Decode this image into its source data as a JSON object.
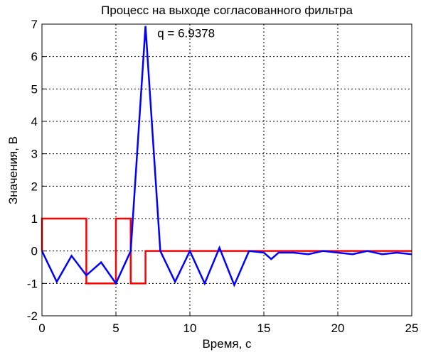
{
  "chart_data": {
    "type": "line",
    "title": "Процесс на выходе согласованного фильтра",
    "xlabel": "Время, с",
    "ylabel": "Значения, В",
    "annotation": {
      "text": "q = 6.9378",
      "x": 7.8,
      "y": 6.6,
      "color": "#0000ff"
    },
    "xlim": [
      0,
      25
    ],
    "ylim": [
      -2,
      7
    ],
    "xticks": [
      0,
      5,
      10,
      15,
      20,
      25
    ],
    "yticks": [
      -2,
      -1,
      0,
      1,
      2,
      3,
      4,
      5,
      6,
      7
    ],
    "grid": true,
    "series": [
      {
        "color": "#ff0000",
        "x": [
          0,
          0,
          3,
          3,
          5,
          5,
          6,
          6,
          7,
          7,
          25
        ],
        "values": [
          0,
          1,
          1,
          -1,
          -1,
          1,
          1,
          -1,
          -1,
          0,
          0
        ]
      },
      {
        "color": "#0000ff",
        "x": [
          0,
          1,
          2,
          3,
          4,
          5,
          6,
          7,
          8,
          9,
          10,
          11,
          12,
          13,
          14,
          15,
          15.5,
          16,
          17,
          18,
          19,
          20,
          21,
          22,
          23,
          24,
          25
        ],
        "values": [
          0,
          -0.95,
          -0.15,
          -0.75,
          -0.35,
          -1,
          0,
          6.94,
          0,
          -0.95,
          0,
          -1,
          0.1,
          -1.05,
          0,
          -0.05,
          -0.25,
          -0.05,
          -0.05,
          -0.1,
          0,
          -0.05,
          -0.1,
          0,
          -0.1,
          -0.05,
          -0.1
        ]
      }
    ]
  }
}
